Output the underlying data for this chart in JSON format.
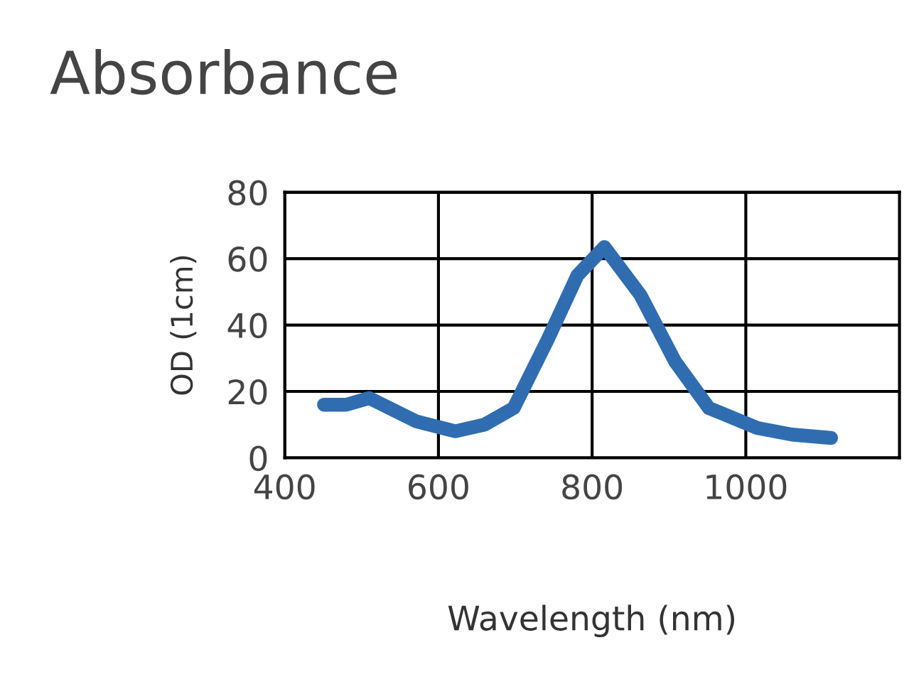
{
  "chart_data": {
    "type": "line",
    "title": "Absorbance",
    "xlabel": "Wavelength (nm)",
    "ylabel": "OD (1cm)",
    "x": [
      451,
      480,
      510,
      571,
      622,
      660,
      698,
      743,
      781,
      816,
      863,
      908,
      952,
      1015,
      1060,
      1111
    ],
    "series": [
      {
        "color": "#2f6db0",
        "values": [
          16,
          16,
          18,
          11,
          8,
          10,
          15,
          36,
          55,
          63.5,
          49,
          29,
          15,
          9,
          7,
          6
        ]
      }
    ],
    "xlim": [
      400,
      1200
    ],
    "xticks": [
      400,
      600,
      800,
      1000
    ],
    "ylim": [
      0,
      80
    ],
    "yticks": [
      0,
      20,
      40,
      60,
      80
    ],
    "grid": true
  }
}
